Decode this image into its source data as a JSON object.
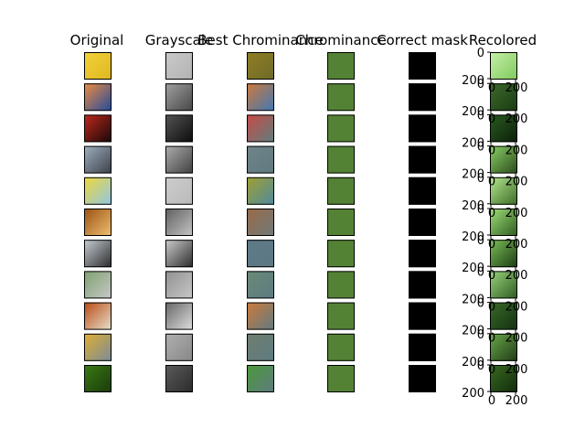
{
  "chart_data": {
    "type": "image_grid",
    "columns": [
      {
        "key": "original",
        "title": "Original"
      },
      {
        "key": "grayscale",
        "title": "Grayscale"
      },
      {
        "key": "best_chrominance",
        "title": "Best Chrominance"
      },
      {
        "key": "chrominance",
        "title": "Chrominance"
      },
      {
        "key": "correct_mask",
        "title": "Correct mask"
      },
      {
        "key": "recolored",
        "title": "Recolored"
      }
    ],
    "rows": [
      {
        "original": [
          "#f2d23a",
          "#e0b720"
        ],
        "best": [
          "#8f7f24",
          "#6f6a2a"
        ],
        "recolor": [
          "#c8f0a8",
          "#7ec95c"
        ]
      },
      {
        "original": [
          "#f08c40",
          "#1f49a0"
        ],
        "best": [
          "#cf7a3a",
          "#3f78b8"
        ],
        "recolor": [
          "#3c6a2c",
          "#1a3a12"
        ]
      },
      {
        "original": [
          "#c0281c",
          "#160808"
        ],
        "best": [
          "#c84a44",
          "#5f7e80"
        ],
        "recolor": [
          "#2a5a22",
          "#0b1f08"
        ]
      },
      {
        "original": [
          "#9fb0bf",
          "#3a3f48"
        ],
        "best": [
          "#6f8488",
          "#5f7a80"
        ],
        "recolor": [
          "#8ad066",
          "#2a4a1a"
        ]
      },
      {
        "original": [
          "#f0d838",
          "#8fc6e6"
        ],
        "best": [
          "#a0a030",
          "#4f8aa0"
        ],
        "recolor": [
          "#b4e890",
          "#3c6a26"
        ]
      },
      {
        "original": [
          "#9a5012",
          "#f0c070"
        ],
        "best": [
          "#9a6a48",
          "#6f7a7a"
        ],
        "recolor": [
          "#9ee07a",
          "#2f5a1e"
        ]
      },
      {
        "original": [
          "#c8cfd6",
          "#2a2a2a"
        ],
        "best": [
          "#5f7a88",
          "#5c7884"
        ],
        "recolor": [
          "#7cc05a",
          "#1a3a10"
        ]
      },
      {
        "original": [
          "#7ea070",
          "#c8c8c8"
        ],
        "best": [
          "#6a8a78",
          "#5f7a80"
        ],
        "recolor": [
          "#9ad47c",
          "#2e5a20"
        ]
      },
      {
        "original": [
          "#b84a14",
          "#e8e0cc"
        ],
        "best": [
          "#cf7a3a",
          "#607a82"
        ],
        "recolor": [
          "#3a6a2a",
          "#123010"
        ]
      },
      {
        "original": [
          "#e0b030",
          "#7a8a9a"
        ],
        "best": [
          "#6f7f70",
          "#5f7a80"
        ],
        "recolor": [
          "#6aa84c",
          "#1f3a14"
        ]
      },
      {
        "original": [
          "#3a7a14",
          "#1a3a0a"
        ],
        "best": [
          "#4a9a3a",
          "#5f7a80"
        ],
        "recolor": [
          "#3a6a24",
          "#102a08"
        ]
      }
    ],
    "chrominance_color": "#548235",
    "mask_color": "#000000",
    "recolored_axes": {
      "y_ticks": [
        "0",
        "200"
      ],
      "x_ticks": [
        "0",
        "200"
      ]
    }
  }
}
